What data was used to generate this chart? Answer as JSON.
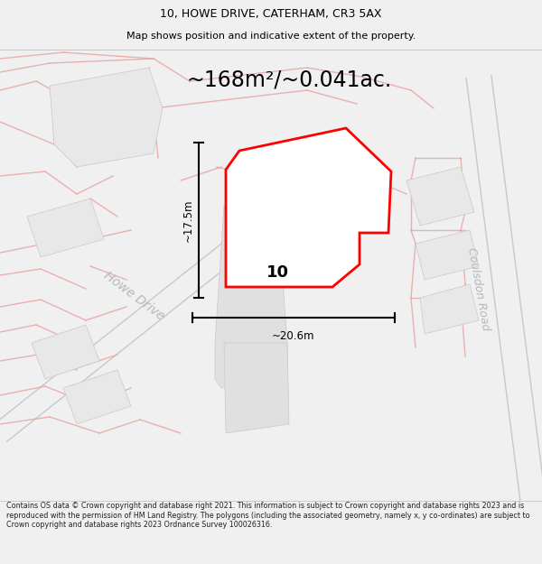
{
  "title_line1": "10, HOWE DRIVE, CATERHAM, CR3 5AX",
  "title_line2": "Map shows position and indicative extent of the property.",
  "area_text": "~168m²/~0.041ac.",
  "dim_width": "~20.6m",
  "dim_height": "~17.5m",
  "label_number": "10",
  "road_label1": "Howe Drive",
  "road_label2": "Coulsdon Road",
  "footer": "Contains OS data © Crown copyright and database right 2021. This information is subject to Crown copyright and database rights 2023 and is reproduced with the permission of HM Land Registry. The polygons (including the associated geometry, namely x, y co-ordinates) are subject to Crown copyright and database rights 2023 Ordnance Survey 100026316.",
  "bg_color": "#f0f0f0",
  "map_bg": "#f8f8f8",
  "plot_fill": "#e0e0e0",
  "plot_outline": "#ff0000",
  "road_line_pink": "#e8a0a0",
  "road_line_gray": "#c8c8c8",
  "dim_line_color": "#000000",
  "text_color": "#000000",
  "road_text_color": "#b8b8b8",
  "title_fontsize": 9,
  "subtitle_fontsize": 8,
  "area_fontsize": 18,
  "footer_fontsize": 5.8
}
